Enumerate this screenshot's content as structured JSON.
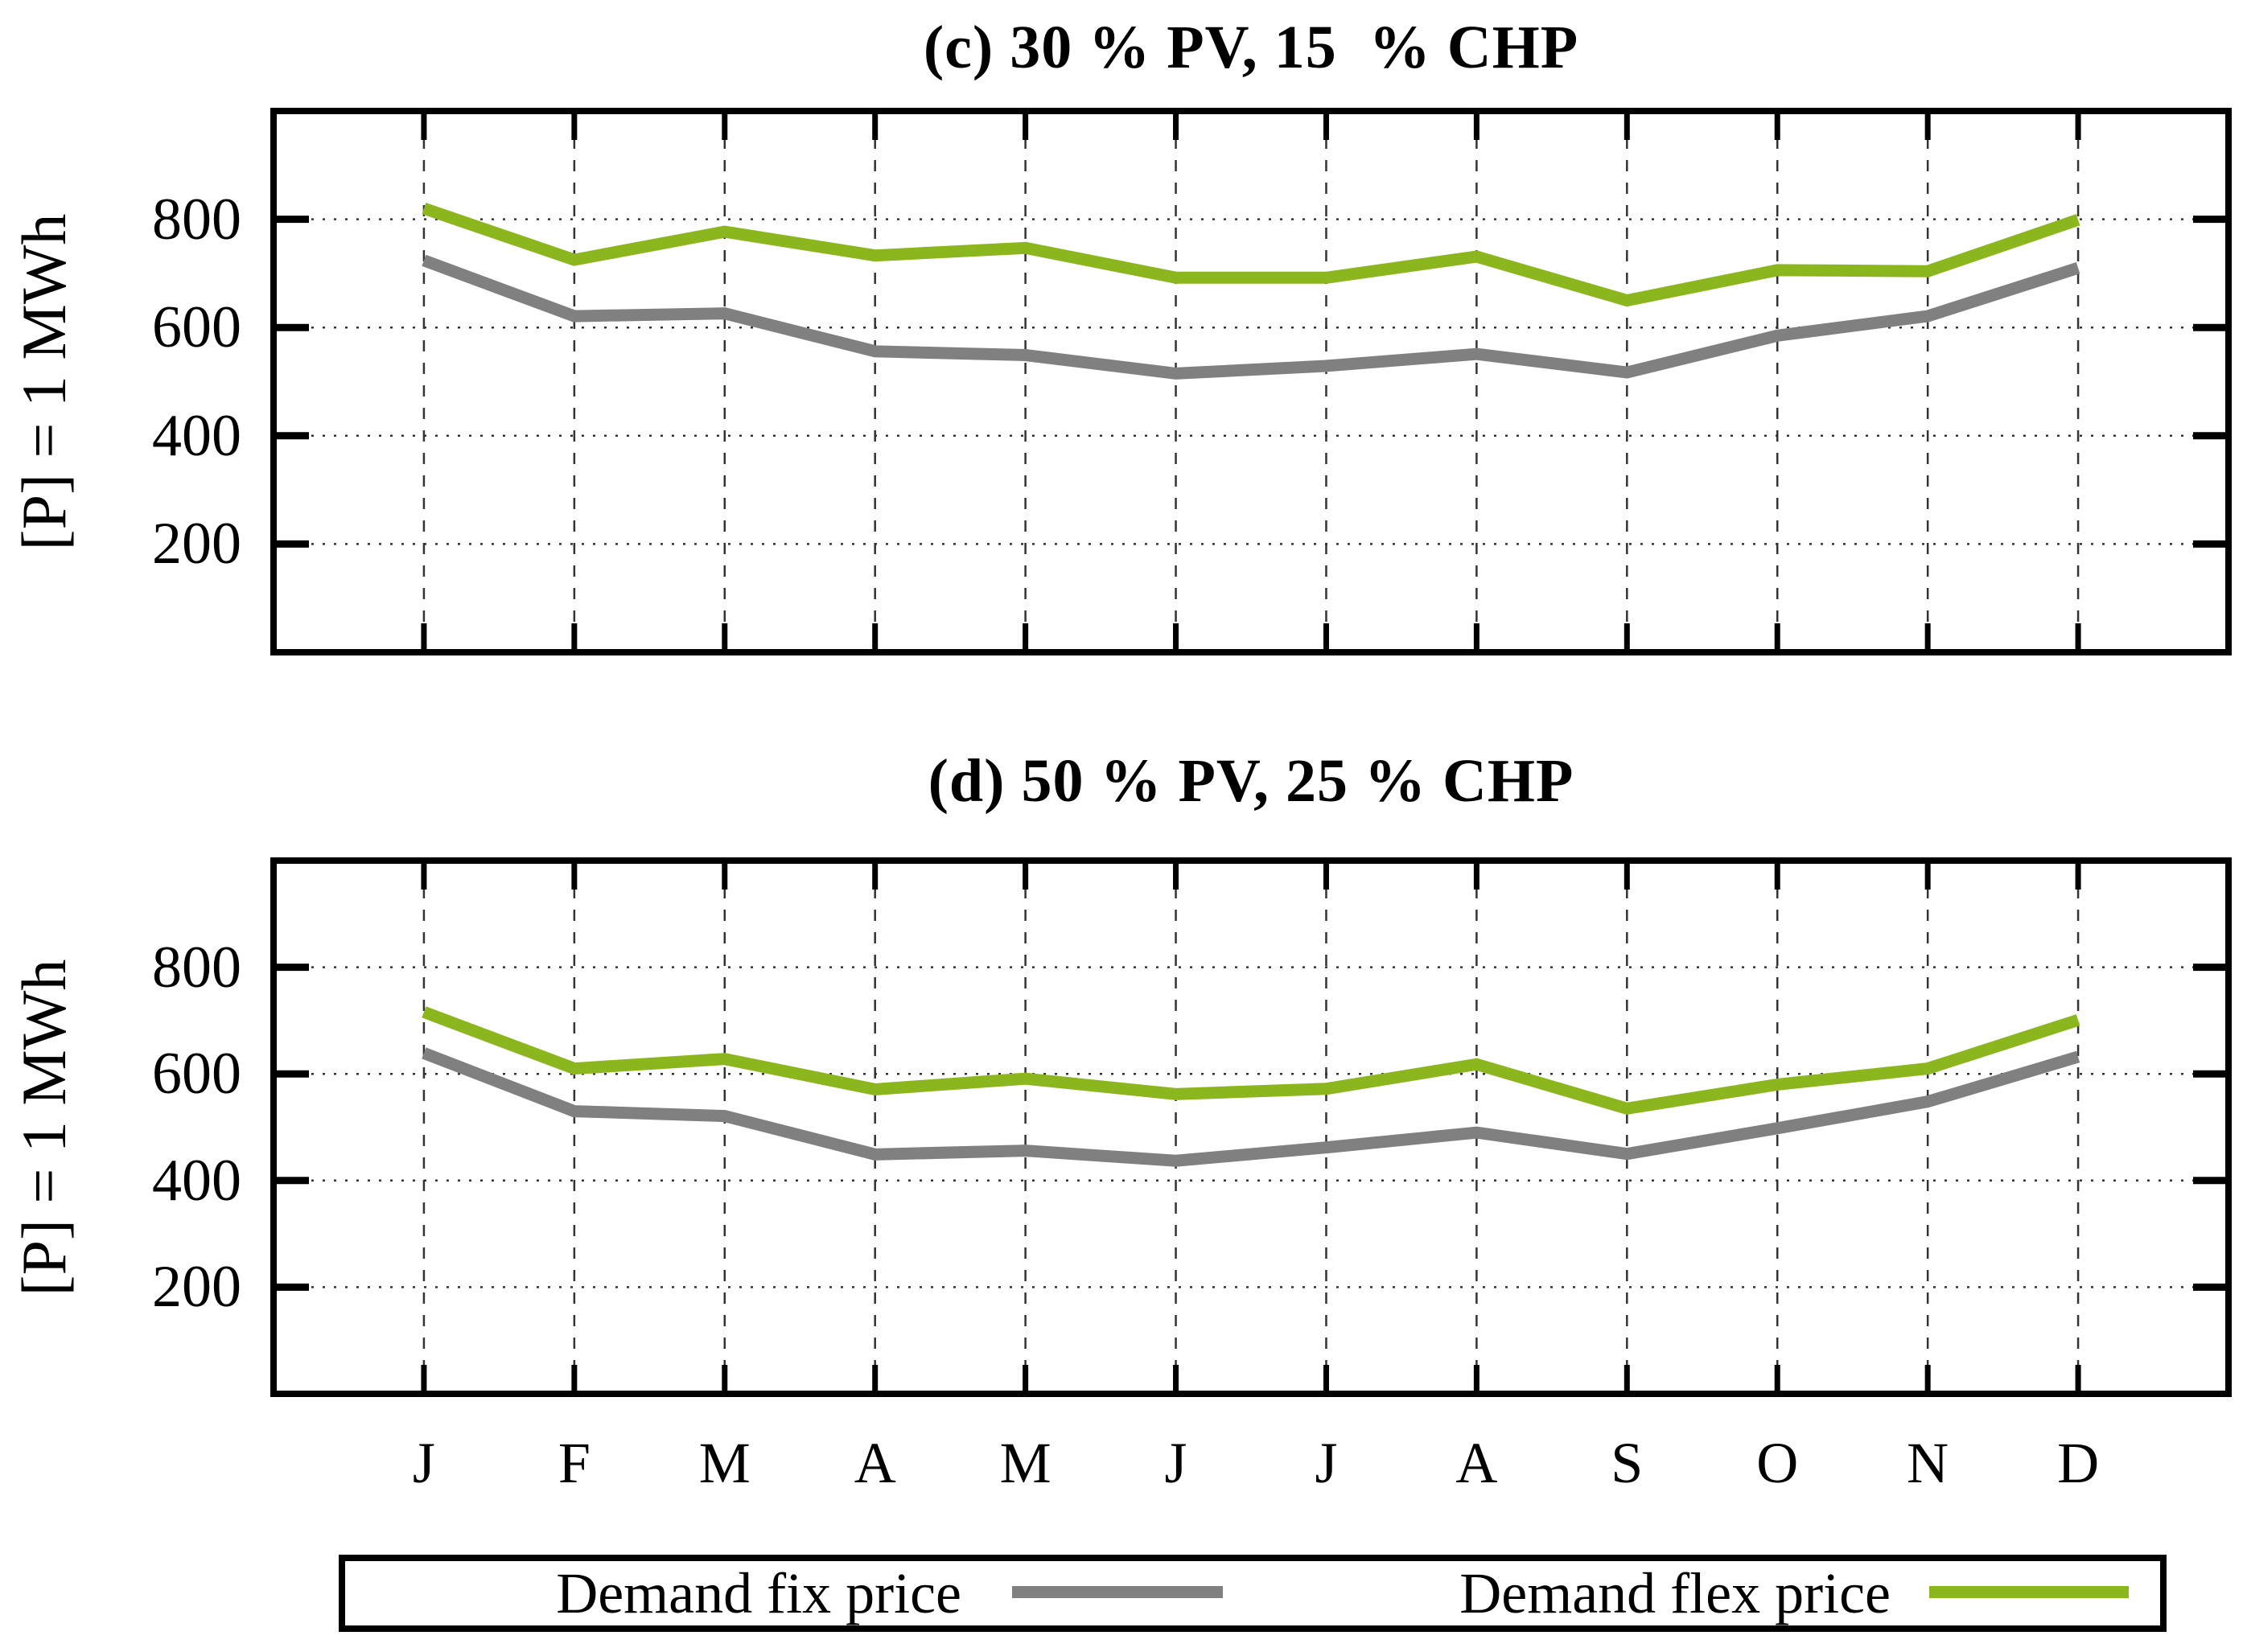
{
  "figure": {
    "y_axis_label": "[P] = 1 MWh",
    "months": [
      "J",
      "F",
      "M",
      "A",
      "M",
      "J",
      "J",
      "A",
      "S",
      "O",
      "N",
      "D"
    ]
  },
  "legend": {
    "fix_label": "Demand fix price",
    "flex_label": "Demand flex price"
  },
  "colors": {
    "fix": "#808080",
    "flex": "#8CB61E",
    "frame": "#000000",
    "grid": "#333333",
    "background": "#FFFFFF"
  },
  "chart_data": [
    {
      "type": "line",
      "title": "(c) 30 % PV, 15  % CHP",
      "xlabel": "",
      "ylabel": "[P] = 1 MWh",
      "ylim": [
        0,
        1000
      ],
      "yticks": [
        200,
        400,
        600,
        800
      ],
      "grid": true,
      "legend_position": "bottom",
      "categories": [
        "J",
        "F",
        "M",
        "A",
        "M",
        "J",
        "J",
        "A",
        "S",
        "O",
        "N",
        "D"
      ],
      "series": [
        {
          "name": "Demand fix price",
          "color": "#808080",
          "values": [
            724,
            621,
            626,
            556,
            549,
            515,
            529,
            551,
            517,
            585,
            621,
            710
          ]
        },
        {
          "name": "Demand flex price",
          "color": "#8CB61E",
          "values": [
            820,
            725,
            777,
            733,
            747,
            692,
            692,
            731,
            650,
            706,
            704,
            799
          ]
        }
      ]
    },
    {
      "type": "line",
      "title": "(d) 50 % PV, 25 % CHP",
      "xlabel": "",
      "ylabel": "[P] = 1 MWh",
      "ylim": [
        0,
        1000
      ],
      "yticks": [
        200,
        400,
        600,
        800
      ],
      "grid": true,
      "legend_position": "bottom",
      "categories": [
        "J",
        "F",
        "M",
        "A",
        "M",
        "J",
        "J",
        "A",
        "S",
        "O",
        "N",
        "D"
      ],
      "series": [
        {
          "name": "Demand fix price",
          "color": "#808080",
          "values": [
            639,
            530,
            521,
            449,
            456,
            437,
            462,
            490,
            450,
            498,
            548,
            632
          ]
        },
        {
          "name": "Demand flex price",
          "color": "#8CB61E",
          "values": [
            716,
            610,
            628,
            571,
            591,
            562,
            572,
            618,
            535,
            580,
            610,
            701
          ]
        }
      ]
    }
  ]
}
